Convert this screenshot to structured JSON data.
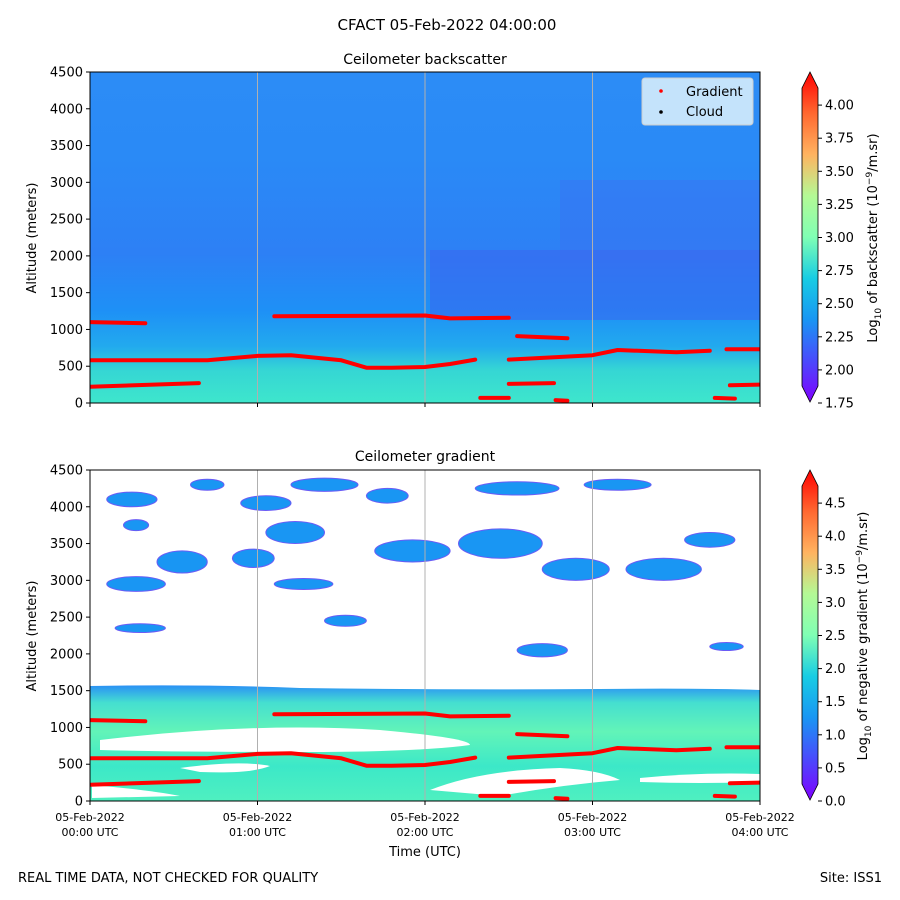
{
  "figure": {
    "suptitle": "CFACT 05-Feb-2022 04:00:00",
    "footer_left": "REAL TIME DATA, NOT CHECKED FOR QUALITY",
    "footer_right": "Site: ISS1"
  },
  "chart_data": [
    {
      "type": "heatmap",
      "title": "Ceilometer backscatter",
      "ylabel": "Altitude (meters)",
      "xlabel": "",
      "xlim": [
        0,
        4
      ],
      "ylim": [
        0,
        4500
      ],
      "x_unit": "hours since 05-Feb-2022 00:00 UTC",
      "yticks": [
        0,
        500,
        1000,
        1500,
        2000,
        2500,
        3000,
        3500,
        4000,
        4500
      ],
      "grid": "vertical lines at 01:00, 02:00, 03:00 UTC",
      "colormap": "rainbow",
      "colorbar": {
        "label_parts": [
          "Log",
          "10",
          " of backscatter (10",
          "−9",
          "/m.sr)"
        ],
        "min": 1.75,
        "max": 4.25,
        "ticks": [
          "1.75",
          "2.00",
          "2.25",
          "2.50",
          "2.75",
          "3.00",
          "3.25",
          "3.50",
          "3.75",
          "4.00"
        ]
      },
      "legend": {
        "position": "top-right",
        "entries": [
          {
            "label": "Gradient",
            "color": "#ff0000",
            "marker": "dot"
          },
          {
            "label": "Cloud",
            "color": "#000000",
            "marker": "dot"
          }
        ]
      },
      "background_field": {
        "description_levels": [
          {
            "alt": [
              0,
              600
            ],
            "value": 2.85
          },
          {
            "alt": [
              600,
              1500
            ],
            "value": 2.45
          },
          {
            "alt": [
              1500,
              4500
            ],
            "value": 2.25
          }
        ]
      }
    },
    {
      "type": "heatmap",
      "title": "Ceilometer gradient",
      "ylabel": "Altitude (meters)",
      "xlabel": "Time (UTC)",
      "xlim": [
        0,
        4
      ],
      "ylim": [
        0,
        4500
      ],
      "yticks": [
        0,
        500,
        1000,
        1500,
        2000,
        2500,
        3000,
        3500,
        4000,
        4500
      ],
      "xticks": [
        {
          "x": 0,
          "date": "05-Feb-2022",
          "time": "00:00 UTC"
        },
        {
          "x": 1,
          "date": "05-Feb-2022",
          "time": "01:00 UTC"
        },
        {
          "x": 2,
          "date": "05-Feb-2022",
          "time": "02:00 UTC"
        },
        {
          "x": 3,
          "date": "05-Feb-2022",
          "time": "03:00 UTC"
        },
        {
          "x": 4,
          "date": "05-Feb-2022",
          "time": "04:00 UTC"
        }
      ],
      "grid": "vertical lines at 01:00, 02:00, 03:00 UTC",
      "colormap": "rainbow",
      "colorbar": {
        "label_parts": [
          "Log",
          "10",
          " of negative gradient (10",
          "−9",
          "/m.sr)"
        ],
        "min": 0.0,
        "max": 5.0,
        "ticks": [
          "0.0",
          "0.5",
          "1.0",
          "1.5",
          "2.0",
          "2.5",
          "3.0",
          "3.5",
          "4.0",
          "4.5"
        ]
      },
      "filled_band": {
        "alt": [
          0,
          1550
        ],
        "value": 1.6
      },
      "cloud_patches": [
        {
          "x": 0.1,
          "w": 0.3,
          "alt": 4100,
          "h": 200,
          "value": 1.4
        },
        {
          "x": 0.6,
          "w": 0.2,
          "alt": 4300,
          "h": 150,
          "value": 1.3
        },
        {
          "x": 0.9,
          "w": 0.3,
          "alt": 4050,
          "h": 200,
          "value": 1.5
        },
        {
          "x": 1.2,
          "w": 0.4,
          "alt": 4300,
          "h": 180,
          "value": 1.4
        },
        {
          "x": 1.65,
          "w": 0.25,
          "alt": 4150,
          "h": 200,
          "value": 1.5
        },
        {
          "x": 2.3,
          "w": 0.5,
          "alt": 4250,
          "h": 180,
          "value": 1.4
        },
        {
          "x": 2.95,
          "w": 0.4,
          "alt": 4300,
          "h": 150,
          "value": 1.4
        },
        {
          "x": 0.2,
          "w": 0.15,
          "alt": 3750,
          "h": 150,
          "value": 1.5
        },
        {
          "x": 0.4,
          "w": 0.3,
          "alt": 3250,
          "h": 300,
          "value": 1.2
        },
        {
          "x": 0.85,
          "w": 0.25,
          "alt": 3300,
          "h": 250,
          "value": 1.3
        },
        {
          "x": 1.05,
          "w": 0.35,
          "alt": 3650,
          "h": 300,
          "value": 1.2
        },
        {
          "x": 1.7,
          "w": 0.45,
          "alt": 3400,
          "h": 300,
          "value": 1.3
        },
        {
          "x": 2.2,
          "w": 0.5,
          "alt": 3500,
          "h": 400,
          "value": 1.2
        },
        {
          "x": 2.7,
          "w": 0.4,
          "alt": 3150,
          "h": 300,
          "value": 1.4
        },
        {
          "x": 3.2,
          "w": 0.45,
          "alt": 3150,
          "h": 300,
          "value": 1.5
        },
        {
          "x": 3.55,
          "w": 0.3,
          "alt": 3550,
          "h": 200,
          "value": 1.3
        },
        {
          "x": 0.1,
          "w": 0.35,
          "alt": 2950,
          "h": 200,
          "value": 1.4
        },
        {
          "x": 1.1,
          "w": 0.35,
          "alt": 2950,
          "h": 150,
          "value": 1.3
        },
        {
          "x": 1.4,
          "w": 0.25,
          "alt": 2450,
          "h": 150,
          "value": 1.4
        },
        {
          "x": 0.15,
          "w": 0.3,
          "alt": 2350,
          "h": 120,
          "value": 1.3
        },
        {
          "x": 2.55,
          "w": 0.3,
          "alt": 2050,
          "h": 180,
          "value": 1.4
        },
        {
          "x": 3.7,
          "w": 0.2,
          "alt": 2100,
          "h": 100,
          "value": 1.3
        }
      ]
    }
  ],
  "gradient_layers": [
    {
      "t": [
        0.0,
        0.33
      ],
      "alt": [
        1100,
        1085
      ]
    },
    {
      "t": [
        0.0,
        0.7,
        1.0,
        1.2,
        1.5,
        1.65,
        1.8,
        2.0,
        2.15,
        2.3
      ],
      "alt": [
        580,
        580,
        640,
        650,
        580,
        480,
        480,
        490,
        530,
        590
      ]
    },
    {
      "t": [
        0.0,
        0.65
      ],
      "alt": [
        220,
        270
      ]
    },
    {
      "t": [
        1.1,
        2.0,
        2.15,
        2.5
      ],
      "alt": [
        1180,
        1190,
        1150,
        1160
      ]
    },
    {
      "t": [
        2.55,
        2.85
      ],
      "alt": [
        910,
        880
      ]
    },
    {
      "t": [
        2.5,
        3.0,
        3.15,
        3.5,
        3.7
      ],
      "alt": [
        590,
        650,
        720,
        690,
        710
      ]
    },
    {
      "t": [
        3.8,
        4.0
      ],
      "alt": [
        730,
        730
      ]
    },
    {
      "t": [
        2.5,
        2.77
      ],
      "alt": [
        260,
        270
      ]
    },
    {
      "t": [
        3.82,
        4.0
      ],
      "alt": [
        240,
        250
      ]
    },
    {
      "t": [
        2.33,
        2.5
      ],
      "alt": [
        70,
        70
      ]
    },
    {
      "t": [
        3.73,
        3.85
      ],
      "alt": [
        70,
        60
      ]
    },
    {
      "t": [
        2.78,
        2.85
      ],
      "alt": [
        40,
        30
      ]
    }
  ]
}
